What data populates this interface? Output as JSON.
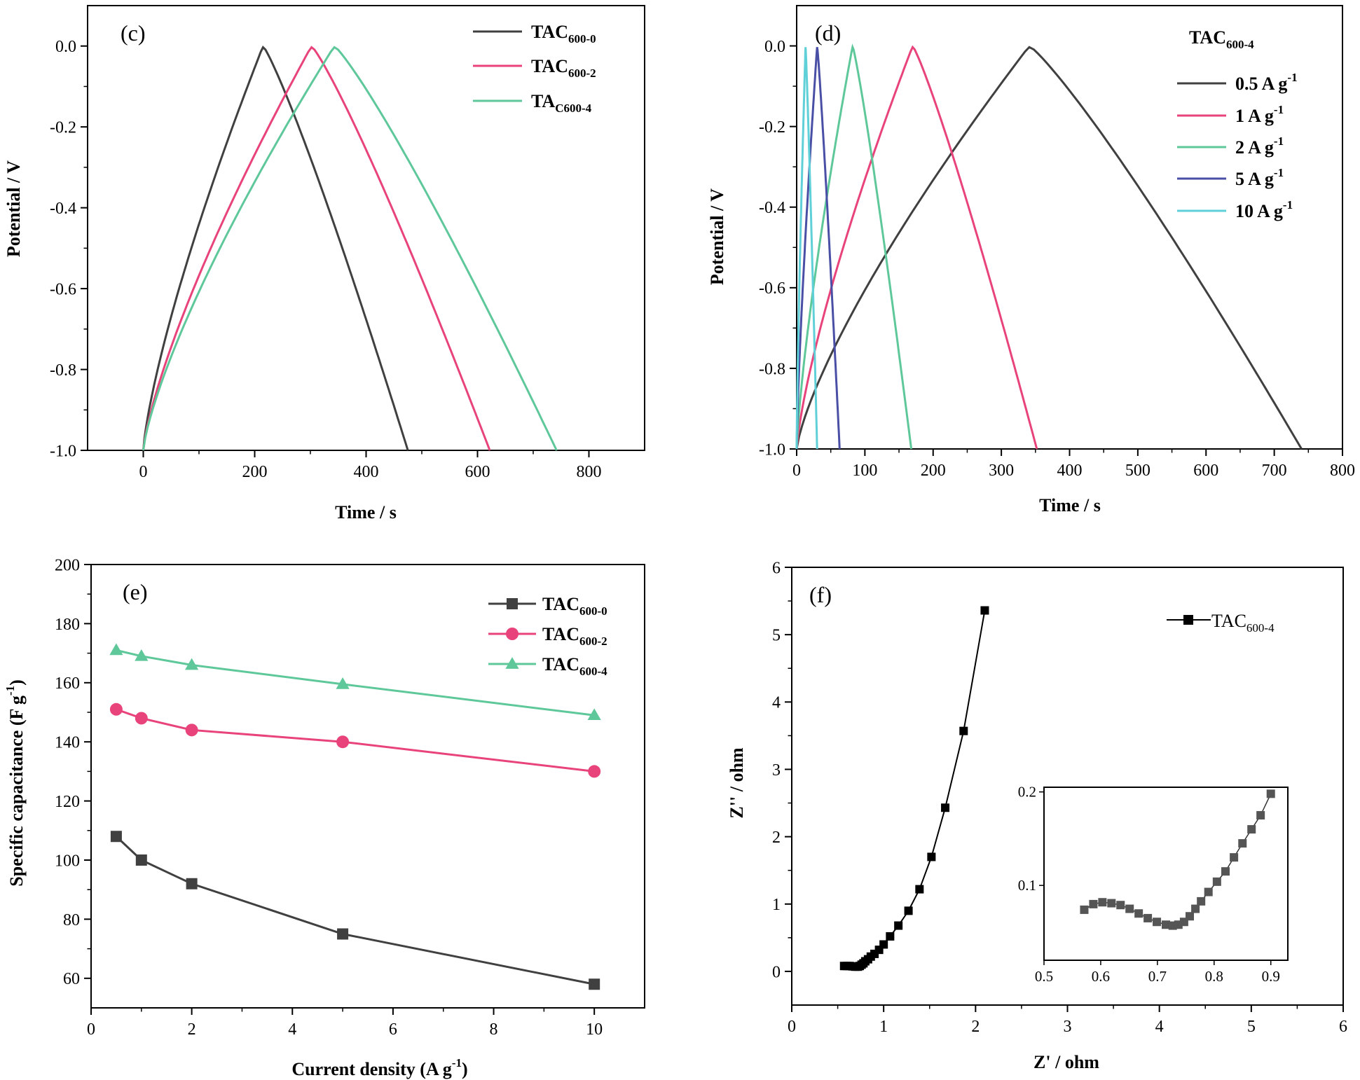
{
  "chart_data": [
    {
      "id": "c",
      "type": "line",
      "panel_label": "(c)",
      "xlabel": "Time / s",
      "ylabel": "Potential / V",
      "xlim": [
        -100,
        900
      ],
      "ylim": [
        -1.0,
        0.1
      ],
      "xticks": [
        0,
        200,
        400,
        600,
        800
      ],
      "yticks": [
        -1.0,
        -0.8,
        -0.6,
        -0.4,
        -0.2,
        0.0
      ],
      "xtick_labels": [
        "0",
        "200",
        "400",
        "600",
        "800"
      ],
      "ytick_labels": [
        "-1.0",
        "-0.8",
        "-0.6",
        "-0.4",
        "-0.2",
        "0.0"
      ],
      "legend_position": "top-right",
      "series": [
        {
          "name": "TAC600-0",
          "label_main": "TAC",
          "label_sub": "600-0",
          "color": "#404040",
          "charge_end": 215,
          "discharge_end": 475
        },
        {
          "name": "TAC600-2",
          "label_main": "TAC",
          "label_sub": "600-2",
          "color": "#e8437a",
          "charge_end": 302,
          "discharge_end": 622
        },
        {
          "name": "TAC600-4",
          "label_main": "TA",
          "label_sub": "C600-4",
          "color": "#5ec89a",
          "charge_end": 343,
          "discharge_end": 742
        }
      ]
    },
    {
      "id": "d",
      "type": "line",
      "panel_label": "(d)",
      "xlabel": "Time / s",
      "ylabel": "Potential / V",
      "xlim": [
        0,
        800
      ],
      "ylim": [
        -1.0,
        0.1
      ],
      "xticks": [
        0,
        100,
        200,
        300,
        400,
        500,
        600,
        700,
        800
      ],
      "yticks": [
        -1.0,
        -0.8,
        -0.6,
        -0.4,
        -0.2,
        0.0
      ],
      "xtick_labels": [
        "0",
        "100",
        "200",
        "300",
        "400",
        "500",
        "600",
        "700",
        "800"
      ],
      "ytick_labels": [
        "-1.0",
        "-0.8",
        "-0.6",
        "-0.4",
        "-0.2",
        "0.0"
      ],
      "legend_title_main": "TAC",
      "legend_title_sub": "600-4",
      "legend_position": "top-right",
      "series": [
        {
          "name": "0.5 A g-1",
          "label_main": "0.5 A g",
          "label_sup": "-1",
          "color": "#404040",
          "charge_end": 341,
          "discharge_end": 740
        },
        {
          "name": "1 A g-1",
          "label_main": "1 A g",
          "label_sup": "-1",
          "color": "#e8437a",
          "charge_end": 170,
          "discharge_end": 352
        },
        {
          "name": "2 A g-1",
          "label_main": "2 A g",
          "label_sup": "-1",
          "color": "#5ec89a",
          "charge_end": 82,
          "discharge_end": 168
        },
        {
          "name": "5 A g-1",
          "label_main": "5 A g",
          "label_sup": "-1",
          "color": "#4a4fa6",
          "charge_end": 30,
          "discharge_end": 63
        },
        {
          "name": "10 A g-1",
          "label_main": "10 A g",
          "label_sup": "-1",
          "color": "#5fd0d8",
          "charge_end": 13,
          "discharge_end": 30
        }
      ]
    },
    {
      "id": "e",
      "type": "line",
      "panel_label": "(e)",
      "xlabel_main": "Current density (A g",
      "xlabel_sup": "-1",
      "xlabel_close": ")",
      "ylabel_main": "Specific capacitance  (F g",
      "ylabel_sup": "-1",
      "ylabel_close": ")",
      "xlim": [
        0,
        11
      ],
      "ylim": [
        50,
        200
      ],
      "xticks": [
        0,
        2,
        4,
        6,
        8,
        10
      ],
      "yticks": [
        60,
        80,
        100,
        120,
        140,
        160,
        180,
        200
      ],
      "xtick_labels": [
        "0",
        "2",
        "4",
        "6",
        "8",
        "10"
      ],
      "ytick_labels": [
        "60",
        "80",
        "100",
        "120",
        "140",
        "160",
        "180",
        "200"
      ],
      "legend_position": "top-right",
      "x": [
        0.5,
        1,
        2,
        5,
        10
      ],
      "series": [
        {
          "name": "TAC600-0",
          "label_main": "TAC",
          "label_sub": "600-0",
          "color": "#404040",
          "marker": "square",
          "values": [
            108,
            100,
            92,
            75,
            58
          ]
        },
        {
          "name": "TAC600-2",
          "label_main": "TAC",
          "label_sub": "600-2",
          "color": "#e8437a",
          "marker": "circle",
          "values": [
            151,
            148,
            144,
            140,
            130
          ]
        },
        {
          "name": "TAC600-4",
          "label_main": "TAC",
          "label_sub": "600-4",
          "color": "#5ec89a",
          "marker": "triangle",
          "values": [
            171,
            169,
            166,
            159.5,
            149
          ]
        }
      ]
    },
    {
      "id": "f",
      "type": "scatter",
      "panel_label": "(f)",
      "xlabel": "Z' / ohm",
      "ylabel": "Z'' / ohm",
      "xlim": [
        0,
        6
      ],
      "ylim": [
        -0.5,
        6
      ],
      "xticks": [
        0,
        1,
        2,
        3,
        4,
        5,
        6
      ],
      "yticks": [
        0,
        1,
        2,
        3,
        4,
        5,
        6
      ],
      "xtick_labels": [
        "0",
        "1",
        "2",
        "3",
        "4",
        "5",
        "6"
      ],
      "ytick_labels": [
        "0",
        "1",
        "2",
        "3",
        "4",
        "5",
        "6"
      ],
      "legend_position": "top-right",
      "series": [
        {
          "name": "TAC600-4",
          "label_main": "TAC",
          "label_sub": "600-4",
          "color": "#000000",
          "marker": "square",
          "x": [
            0.57,
            0.6,
            0.63,
            0.66,
            0.69,
            0.72,
            0.74,
            0.76,
            0.78,
            0.8,
            0.83,
            0.86,
            0.9,
            0.95,
            1.0,
            1.07,
            1.16,
            1.27,
            1.39,
            1.52,
            1.67,
            1.87,
            2.1
          ],
          "y": [
            0.08,
            0.08,
            0.08,
            0.075,
            0.07,
            0.07,
            0.08,
            0.1,
            0.12,
            0.15,
            0.18,
            0.22,
            0.26,
            0.32,
            0.4,
            0.52,
            0.68,
            0.9,
            1.22,
            1.7,
            2.43,
            3.57,
            5.36
          ]
        }
      ],
      "inset": {
        "xlim": [
          0.5,
          0.93
        ],
        "ylim": [
          0.02,
          0.205
        ],
        "xticks": [
          0.5,
          0.6,
          0.7,
          0.8,
          0.9
        ],
        "yticks": [
          0.1,
          0.2
        ],
        "xtick_labels": [
          "0.5",
          "0.6",
          "0.7",
          "0.8",
          "0.9"
        ],
        "ytick_labels": [
          "0.1",
          "0.2"
        ],
        "x": [
          0.571,
          0.587,
          0.603,
          0.619,
          0.635,
          0.651,
          0.667,
          0.683,
          0.699,
          0.715,
          0.727,
          0.737,
          0.747,
          0.757,
          0.767,
          0.777,
          0.79,
          0.805,
          0.82,
          0.835,
          0.85,
          0.866,
          0.882,
          0.9
        ],
        "y": [
          0.074,
          0.08,
          0.082,
          0.081,
          0.079,
          0.075,
          0.07,
          0.065,
          0.061,
          0.058,
          0.057,
          0.058,
          0.061,
          0.067,
          0.075,
          0.083,
          0.093,
          0.104,
          0.115,
          0.13,
          0.145,
          0.16,
          0.175,
          0.198
        ]
      }
    }
  ]
}
